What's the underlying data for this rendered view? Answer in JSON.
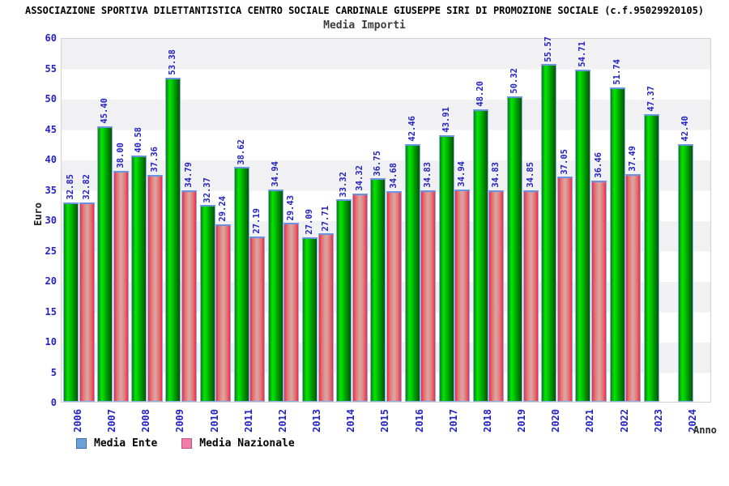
{
  "header": {
    "title": "ASSOCIAZIONE SPORTIVA DILETTANTISTICA CENTRO SOCIALE CARDINALE GIUSEPPE SIRI DI PROMOZIONE SOCIALE (c.f.95029920105)",
    "subtitle": "Media Importi"
  },
  "chart_data": {
    "type": "bar",
    "title": "Media Importi",
    "xlabel": "Anno",
    "ylabel": "Euro",
    "ylim": [
      0,
      60
    ],
    "ytick_step": 5,
    "grid": "alternating-horizontal-bands",
    "legend_position": "bottom-left",
    "value_label_format": "2-decimals",
    "label_rotation_degrees": -90,
    "categories": [
      "2006",
      "2007",
      "2008",
      "2009",
      "2010",
      "2011",
      "2012",
      "2013",
      "2014",
      "2015",
      "2016",
      "2017",
      "2018",
      "2019",
      "2020",
      "2021",
      "2022",
      "2023",
      "2024"
    ],
    "series": [
      {
        "name": "Media Ente",
        "bar_color": "green-cylinder-gradient",
        "legend_color": "#6d9fd8",
        "values": [
          32.85,
          45.4,
          40.58,
          53.38,
          32.37,
          38.62,
          34.94,
          27.09,
          33.32,
          36.75,
          42.46,
          43.91,
          48.2,
          50.32,
          55.57,
          54.71,
          51.74,
          47.37,
          42.4
        ]
      },
      {
        "name": "Media Nazionale",
        "bar_color": "red-cylinder-gradient",
        "legend_color": "#f07ca8",
        "values": [
          32.82,
          38.0,
          37.36,
          34.79,
          29.24,
          27.19,
          29.43,
          27.71,
          34.32,
          34.68,
          34.83,
          34.94,
          34.83,
          34.85,
          37.05,
          36.46,
          37.49,
          null,
          null
        ]
      }
    ],
    "colors": {
      "tick_and_value_labels": "#2323c3",
      "band_gray": "#f1f1f3",
      "band_white": "#ffffff",
      "bar_border_blue": "#8ab2ee",
      "bar_green_main": "#00cc00",
      "bar_red_main": "#e4506a",
      "title_text": "#000000",
      "subtitle_text": "#3e3e3e"
    }
  }
}
